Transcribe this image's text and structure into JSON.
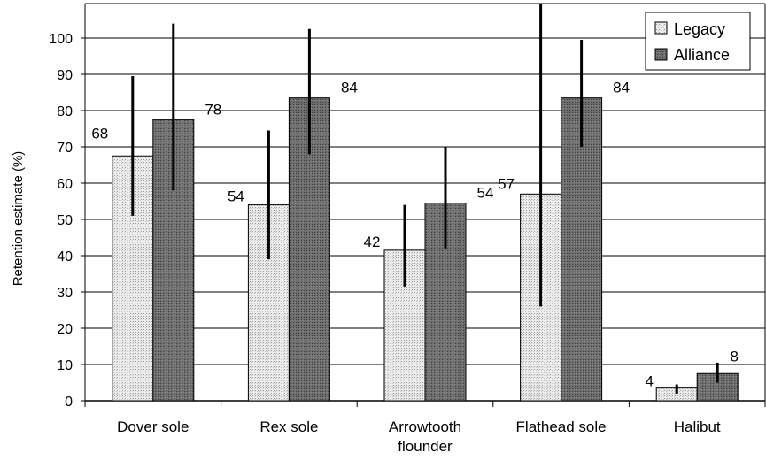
{
  "chart_data": {
    "type": "bar",
    "title": "",
    "ylabel": "Retention estimate (%)",
    "xlabel": "",
    "ylim": [
      0,
      100
    ],
    "yticks": [
      0,
      10,
      20,
      30,
      40,
      50,
      60,
      70,
      80,
      90,
      100
    ],
    "categories": [
      [
        "Dover sole"
      ],
      [
        "Rex sole"
      ],
      [
        "Arrowtooth",
        "flounder"
      ],
      [
        "Flathead sole"
      ],
      [
        "Halibut"
      ]
    ],
    "series": [
      {
        "name": "Legacy",
        "values": [
          67.5,
          54,
          41.5,
          57,
          3.5
        ],
        "labels": [
          "68",
          "54",
          "42",
          "57",
          "4"
        ],
        "error_low": [
          51,
          39,
          31.5,
          26,
          2
        ],
        "error_high": [
          89.5,
          74.5,
          54,
          110,
          4.5
        ]
      },
      {
        "name": "Alliance",
        "values": [
          77.5,
          83.5,
          54.5,
          83.5,
          7.5
        ],
        "labels": [
          "78",
          "84",
          "54",
          "84",
          "8"
        ],
        "error_low": [
          58,
          68,
          42,
          70,
          5
        ],
        "error_high": [
          104,
          102.5,
          70,
          99.5,
          10.5
        ]
      }
    ],
    "legend_position": "top-right",
    "grid": true,
    "colors": {
      "Legacy": "#e6e6e6",
      "Alliance": "#707070",
      "error_bar": "#000000",
      "grid": "#000000"
    }
  }
}
